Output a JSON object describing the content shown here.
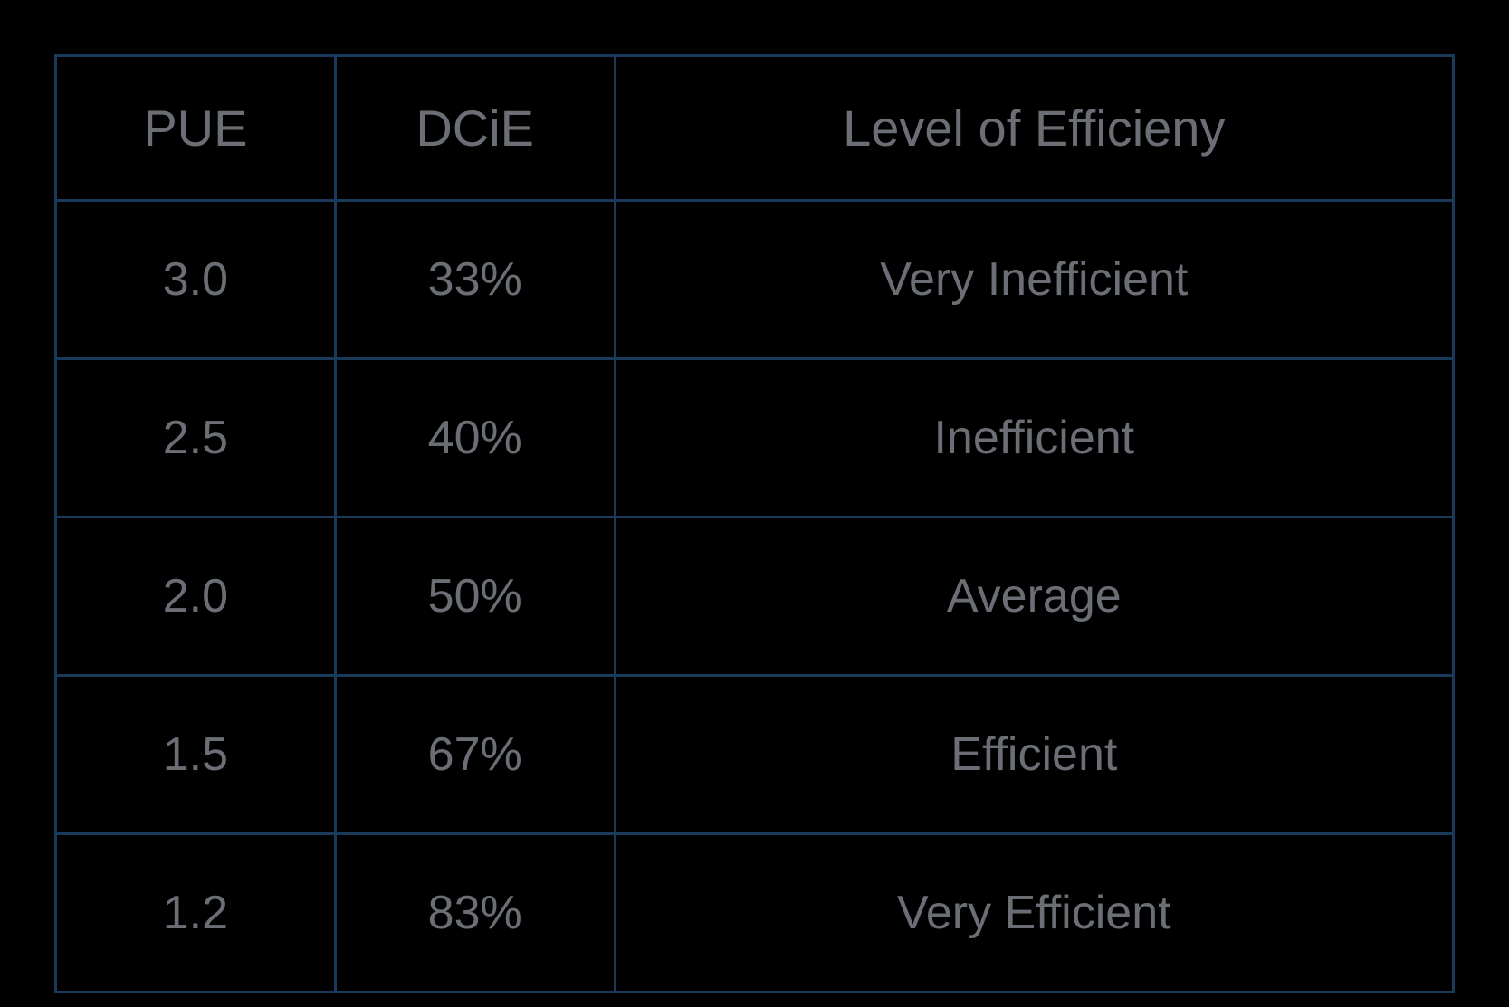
{
  "table": {
    "type": "table",
    "background_color": "#000000",
    "border_color": "#1a3a5c",
    "border_width": 3,
    "text_color": "#6b6f75",
    "header_fontsize": 56,
    "cell_fontsize": 52,
    "columns": [
      {
        "key": "pue",
        "label": "PUE",
        "width_pct": 20
      },
      {
        "key": "dcie",
        "label": "DCiE",
        "width_pct": 20
      },
      {
        "key": "level",
        "label": "Level of Efficieny",
        "width_pct": 60
      }
    ],
    "rows": [
      {
        "pue": "3.0",
        "dcie": "33%",
        "level": "Very Inefficient"
      },
      {
        "pue": "2.5",
        "dcie": "40%",
        "level": "Inefficient"
      },
      {
        "pue": "2.0",
        "dcie": "50%",
        "level": "Average"
      },
      {
        "pue": "1.5",
        "dcie": "67%",
        "level": "Efficient"
      },
      {
        "pue": "1.2",
        "dcie": "83%",
        "level": "Very Efficient"
      }
    ]
  }
}
